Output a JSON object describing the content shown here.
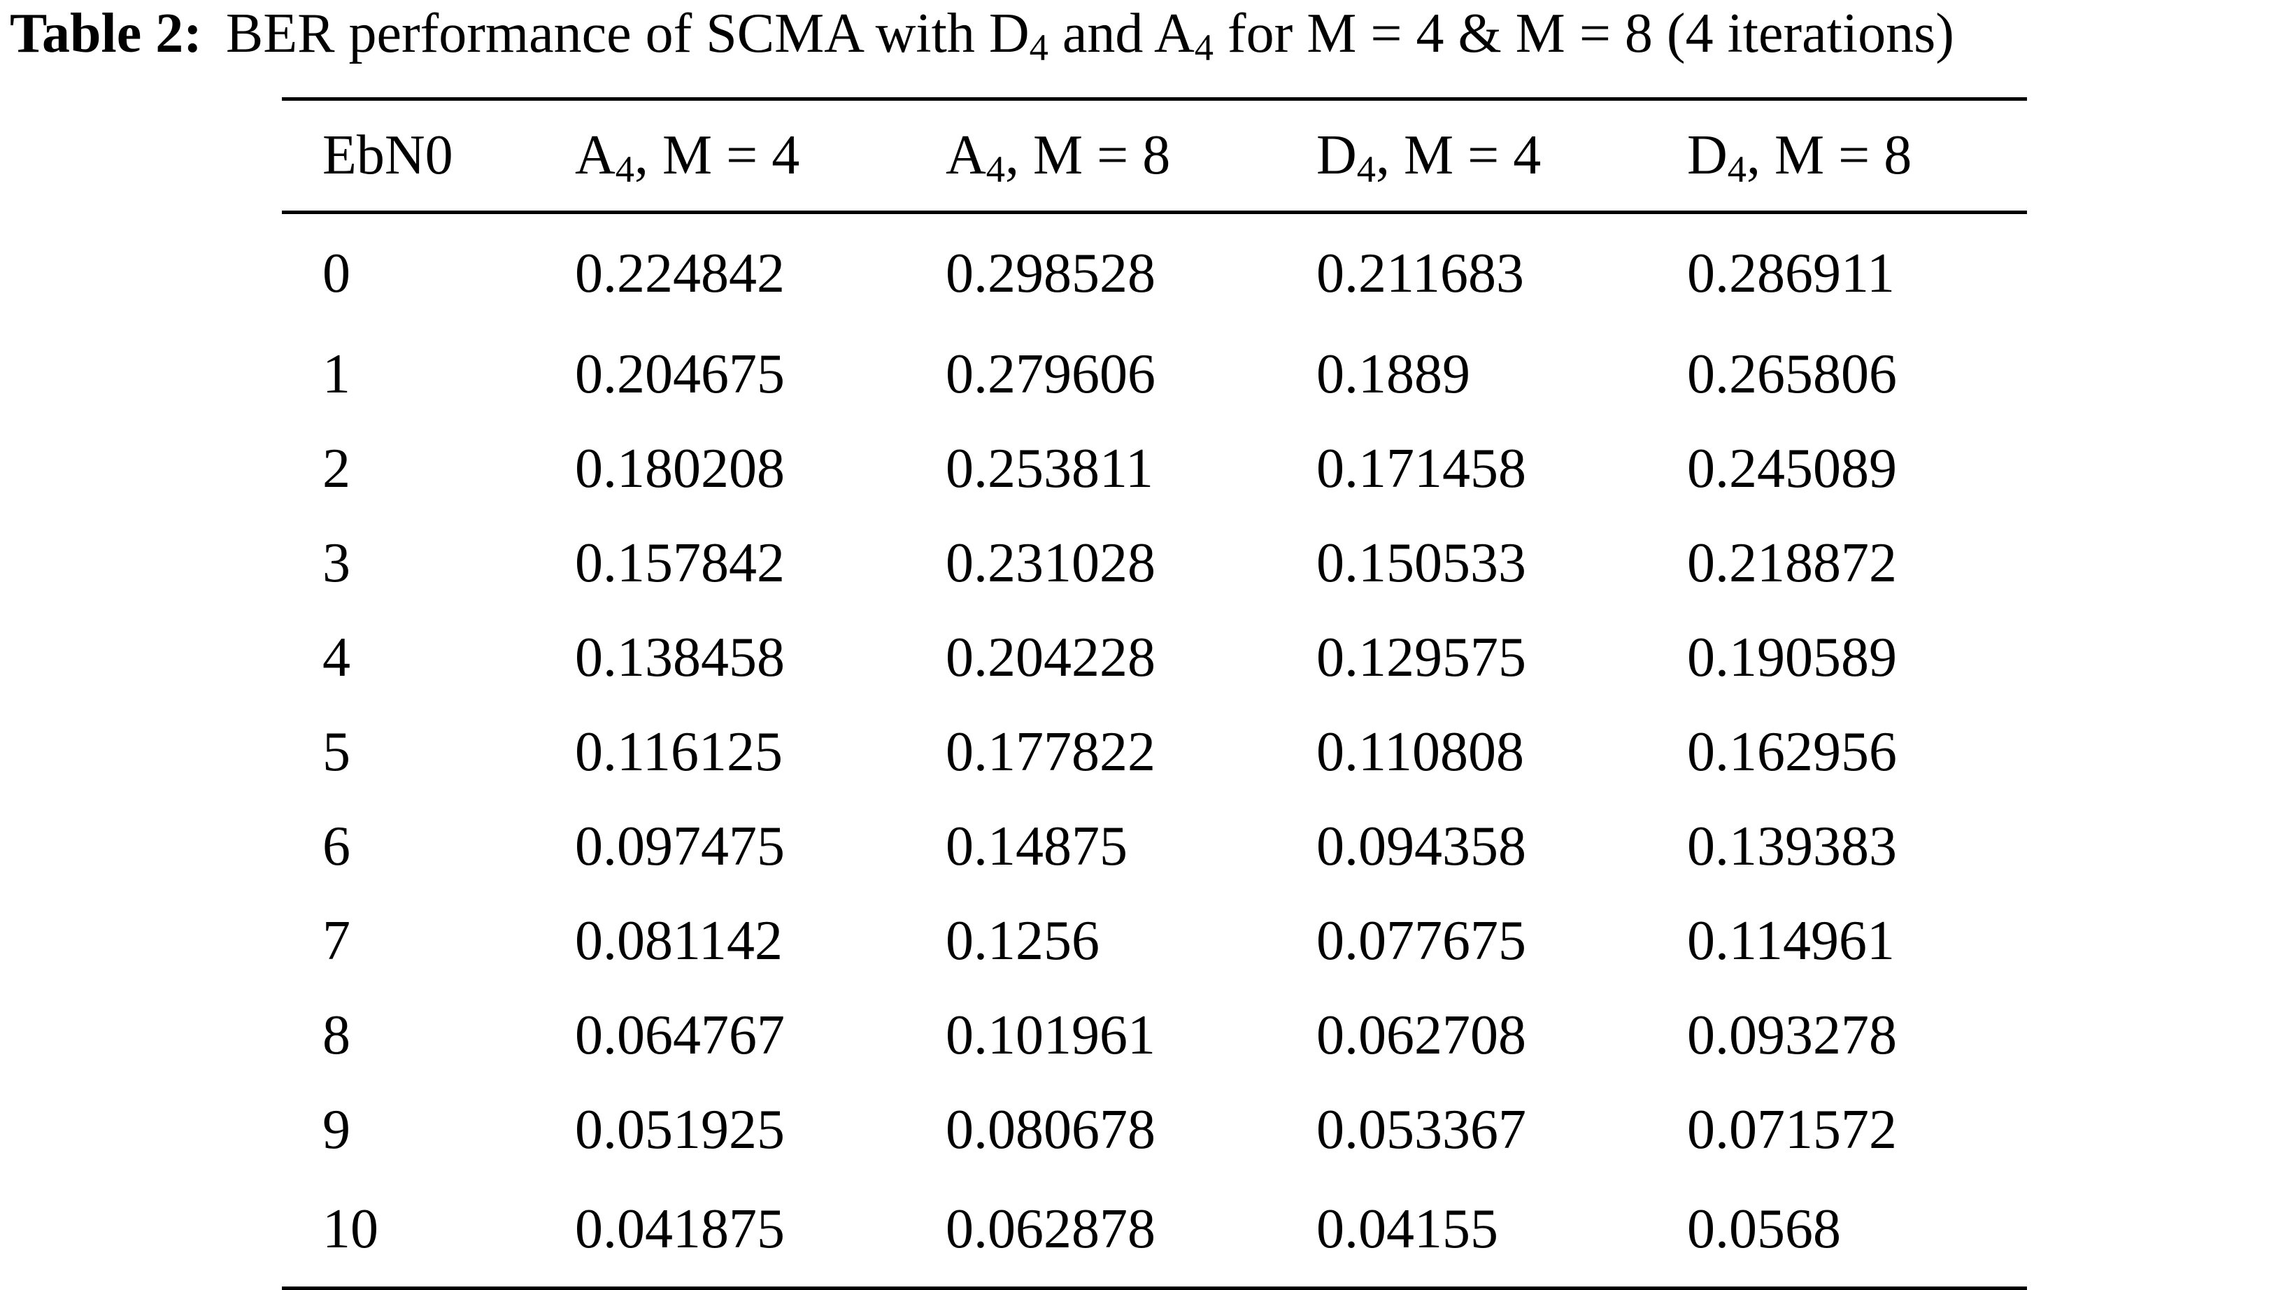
{
  "caption": {
    "label": "Table 2:",
    "text_pre": "BER performance of SCMA with D",
    "sub1": "4",
    "text_mid": " and A",
    "sub2": "4",
    "text_post": " for M = 4 & M = 8 (4 iterations)"
  },
  "table": {
    "headers": [
      {
        "main": "EbN0",
        "sub": "",
        "rest": ""
      },
      {
        "main": "A",
        "sub": "4",
        "rest": ", M = 4"
      },
      {
        "main": "A",
        "sub": "4",
        "rest": ", M = 8"
      },
      {
        "main": "D",
        "sub": "4",
        "rest": ", M = 4"
      },
      {
        "main": "D",
        "sub": "4",
        "rest": ", M = 8"
      }
    ],
    "rows": [
      [
        "0",
        "0.224842",
        "0.298528",
        "0.211683",
        "0.286911"
      ],
      [
        "1",
        "0.204675",
        "0.279606",
        "0.1889",
        "0.265806"
      ],
      [
        "2",
        "0.180208",
        "0.253811",
        "0.171458",
        "0.245089"
      ],
      [
        "3",
        "0.157842",
        "0.231028",
        "0.150533",
        "0.218872"
      ],
      [
        "4",
        "0.138458",
        "0.204228",
        "0.129575",
        "0.190589"
      ],
      [
        "5",
        "0.116125",
        "0.177822",
        "0.110808",
        "0.162956"
      ],
      [
        "6",
        "0.097475",
        "0.14875",
        "0.094358",
        "0.139383"
      ],
      [
        "7",
        "0.081142",
        "0.1256",
        "0.077675",
        "0.114961"
      ],
      [
        "8",
        "0.064767",
        "0.101961",
        "0.062708",
        "0.093278"
      ],
      [
        "9",
        "0.051925",
        "0.080678",
        "0.053367",
        "0.071572"
      ],
      [
        "10",
        "0.041875",
        "0.062878",
        "0.04155",
        "0.0568"
      ]
    ]
  }
}
